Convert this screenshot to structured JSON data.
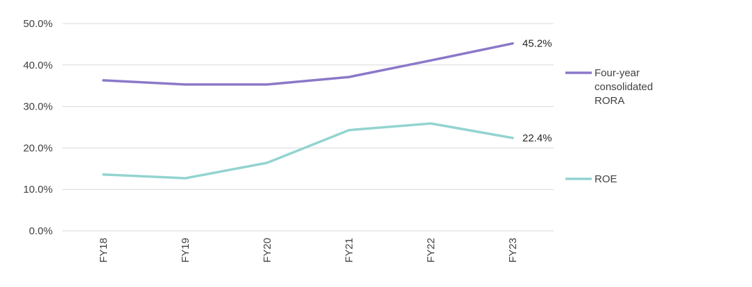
{
  "chart_data": {
    "type": "line",
    "categories": [
      "FY18",
      "FY19",
      "FY20",
      "FY21",
      "FY22",
      "FY23"
    ],
    "series": [
      {
        "name": "Four-year consolidated RORA",
        "name_lines": [
          "Four-year",
          "consolidated",
          "RORA"
        ],
        "values": [
          36.3,
          35.3,
          35.3,
          37.1,
          41.1,
          45.2
        ],
        "color": "#8b78c8",
        "end_label": "45.2%"
      },
      {
        "name": "ROE",
        "name_lines": [
          "ROE"
        ],
        "values": [
          13.6,
          12.7,
          16.4,
          24.3,
          25.9,
          22.4
        ],
        "color": "#92d4d0",
        "end_label": "22.4%"
      }
    ],
    "y_ticks": [
      "0.0%",
      "10.0%",
      "20.0%",
      "30.0%",
      "40.0%",
      "50.0%"
    ],
    "ylim": [
      0,
      50
    ],
    "title": "",
    "xlabel": "",
    "ylabel": "",
    "grid": true,
    "legend_position": "right",
    "gridline_color": "#d9d9d9"
  }
}
